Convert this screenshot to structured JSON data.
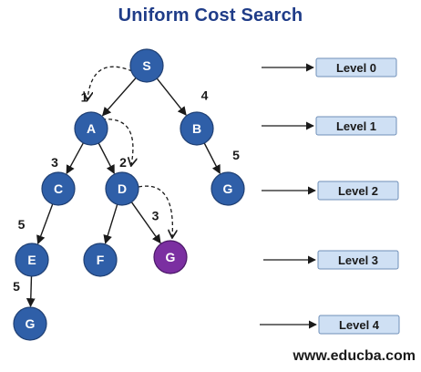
{
  "title": "Uniform Cost Search",
  "footer": "www.educba.com",
  "colors": {
    "title": "#1f3c88",
    "node_fill": "#2f5fa8",
    "node_stroke": "#1f3f73",
    "goal_fill": "#7b2fa1",
    "level_fill": "#cfe0f4",
    "level_stroke": "#6f8fb8",
    "edge": "#1a1a1a"
  },
  "nodes": [
    {
      "id": "S",
      "label": "S"
    },
    {
      "id": "A",
      "label": "A"
    },
    {
      "id": "B",
      "label": "B"
    },
    {
      "id": "C",
      "label": "C"
    },
    {
      "id": "D",
      "label": "D"
    },
    {
      "id": "G1",
      "label": "G"
    },
    {
      "id": "E",
      "label": "E"
    },
    {
      "id": "F",
      "label": "F"
    },
    {
      "id": "G2",
      "label": "G",
      "goal": true
    },
    {
      "id": "G3",
      "label": "G"
    }
  ],
  "edges": [
    {
      "from": "S",
      "to": "A",
      "cost": "1"
    },
    {
      "from": "S",
      "to": "B",
      "cost": "4"
    },
    {
      "from": "A",
      "to": "C",
      "cost": "3"
    },
    {
      "from": "A",
      "to": "D",
      "cost": "2"
    },
    {
      "from": "B",
      "to": "G1",
      "cost": "5"
    },
    {
      "from": "C",
      "to": "E",
      "cost": "5"
    },
    {
      "from": "D",
      "to": "F",
      "cost": ""
    },
    {
      "from": "D",
      "to": "G2",
      "cost": "3"
    },
    {
      "from": "E",
      "to": "G3",
      "cost": "5"
    }
  ],
  "search_path": [
    {
      "from": "S",
      "to": "A"
    },
    {
      "from": "A",
      "to": "D"
    },
    {
      "from": "D",
      "to": "G2"
    }
  ],
  "levels": [
    "Level 0",
    "Level 1",
    "Level 2",
    "Level 3",
    "Level 4"
  ]
}
